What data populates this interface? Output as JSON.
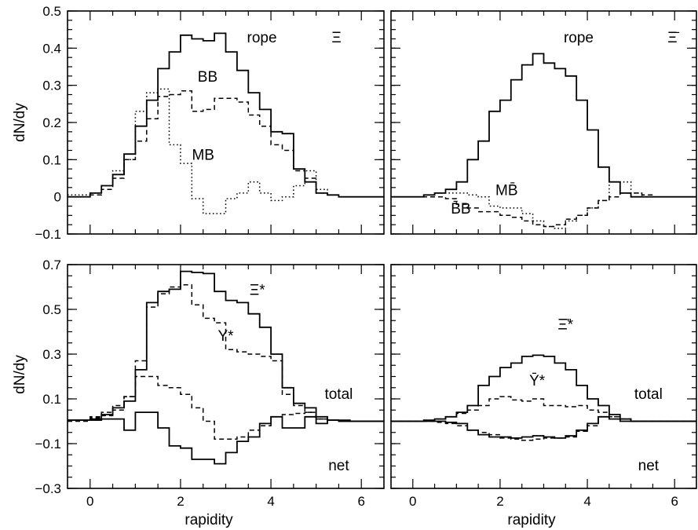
{
  "figure": {
    "ylabel": "dN/dy",
    "xlabel": "rapidity"
  },
  "chart_data": [
    {
      "id": "top-left",
      "type": "line",
      "step": true,
      "xlim": [
        -0.5,
        6.5
      ],
      "ylim": [
        -0.1,
        0.5
      ],
      "xticks": [
        0,
        2,
        4,
        6
      ],
      "yticks": [
        -0.1,
        0,
        0.1,
        0.2,
        0.3,
        0.4,
        0.5
      ],
      "ytick_labels": [
        "−0.1",
        "0",
        "0.1",
        "0.2",
        "0.3",
        "0.4",
        "0.5"
      ],
      "xtick_labels_shown": false,
      "edges": [
        -0.5,
        0,
        0.25,
        0.5,
        0.75,
        1,
        1.25,
        1.5,
        1.75,
        2,
        2.25,
        2.5,
        2.75,
        3,
        3.25,
        3.5,
        3.75,
        4,
        4.25,
        4.5,
        4.75,
        5,
        5.25,
        5.5,
        5.75,
        6,
        6.5
      ],
      "series": [
        {
          "id": "rope",
          "style": "solid",
          "values": [
            0,
            0.01,
            0.03,
            0.06,
            0.115,
            0.19,
            0.26,
            0.345,
            0.39,
            0.435,
            0.425,
            0.42,
            0.44,
            0.39,
            0.34,
            0.28,
            0.235,
            0.175,
            0.17,
            0.075,
            0.04,
            0.01,
            0.005,
            0,
            0,
            0
          ]
        },
        {
          "id": "BB",
          "style": "dashed",
          "values": [
            0,
            0.005,
            0.02,
            0.05,
            0.1,
            0.15,
            0.21,
            0.27,
            0.275,
            0.285,
            0.23,
            0.235,
            0.265,
            0.265,
            0.255,
            0.22,
            0.19,
            0.14,
            0.125,
            0.07,
            0.05,
            0.01,
            0.005,
            0,
            0,
            0
          ]
        },
        {
          "id": "MB",
          "style": "dotted",
          "values": [
            0.005,
            0.01,
            0.03,
            0.07,
            0.1,
            0.23,
            0.28,
            0.29,
            0.14,
            0.09,
            -0.005,
            -0.045,
            -0.045,
            -0.005,
            0.01,
            0.04,
            0.01,
            -0.01,
            0.0,
            0.03,
            0.07,
            0.02,
            0.005,
            0,
            0,
            0
          ]
        }
      ],
      "annotations": [
        {
          "text": "rope",
          "x": 3.8,
          "y": 0.415
        },
        {
          "text": "BB",
          "x": 2.6,
          "y": 0.31
        },
        {
          "text": "MB",
          "x": 2.5,
          "y": 0.1
        },
        {
          "text": "Ξ",
          "x": 5.45,
          "y": 0.415,
          "symbol": true
        }
      ]
    },
    {
      "id": "top-right",
      "type": "line",
      "step": true,
      "xlim": [
        -0.5,
        6.5
      ],
      "ylim": [
        -0.1,
        0.5
      ],
      "xticks": [
        0,
        2,
        4,
        6
      ],
      "yticks": [
        -0.1,
        0,
        0.1,
        0.2,
        0.3,
        0.4,
        0.5
      ],
      "xtick_labels_shown": false,
      "ytick_labels_shown": false,
      "edges": [
        -0.5,
        0,
        0.25,
        0.5,
        0.75,
        1,
        1.25,
        1.5,
        1.75,
        2,
        2.25,
        2.5,
        2.75,
        3,
        3.25,
        3.5,
        3.75,
        4,
        4.25,
        4.5,
        4.75,
        5,
        5.25,
        5.5,
        5.75,
        6,
        6.5
      ],
      "series": [
        {
          "id": "rope",
          "style": "solid",
          "values": [
            0,
            0,
            0.005,
            0.01,
            0.02,
            0.04,
            0.1,
            0.15,
            0.23,
            0.26,
            0.315,
            0.355,
            0.385,
            0.36,
            0.345,
            0.325,
            0.26,
            0.18,
            0.08,
            0.04,
            0.01,
            0,
            0,
            0,
            0,
            0
          ]
        },
        {
          "id": "BB",
          "style": "dashed",
          "values": [
            0,
            0,
            0,
            0,
            -0.005,
            -0.02,
            -0.03,
            -0.04,
            -0.04,
            -0.05,
            -0.055,
            -0.065,
            -0.075,
            -0.08,
            -0.075,
            -0.06,
            -0.05,
            -0.03,
            -0.01,
            0.0,
            0.01,
            0.01,
            0.005,
            0,
            0,
            0
          ]
        },
        {
          "id": "MB",
          "style": "dotted",
          "values": [
            0,
            0,
            0.005,
            0.01,
            0.01,
            0.01,
            0.005,
            0,
            -0.025,
            -0.03,
            -0.03,
            -0.045,
            -0.065,
            -0.08,
            -0.085,
            -0.065,
            -0.05,
            -0.03,
            -0.01,
            0.04,
            0.04,
            0.01,
            0,
            0,
            0,
            0
          ]
        }
      ],
      "annotations": [
        {
          "text": "rope",
          "x": 3.8,
          "y": 0.415
        },
        {
          "text": "MB̄",
          "x": 2.15,
          "y": 0.005
        },
        {
          "text": "B̄B",
          "x": 1.1,
          "y": -0.045
        },
        {
          "text": "Ξ̄",
          "x": 5.95,
          "y": 0.415,
          "symbol": true
        }
      ]
    },
    {
      "id": "bottom-left",
      "type": "line",
      "step": true,
      "xlim": [
        -0.5,
        6.5
      ],
      "ylim": [
        -0.3,
        0.7
      ],
      "xticks": [
        0,
        2,
        4,
        6
      ],
      "xtick_labels": [
        "0",
        "2",
        "4",
        "6"
      ],
      "yticks": [
        -0.3,
        -0.1,
        0.1,
        0.3,
        0.5,
        0.7
      ],
      "ytick_labels": [
        "−0.3",
        "−0.1",
        "0.1",
        "0.3",
        "0.5",
        "0.7"
      ],
      "edges": [
        -0.5,
        0,
        0.25,
        0.5,
        0.75,
        1,
        1.25,
        1.5,
        1.75,
        2,
        2.25,
        2.5,
        2.75,
        3,
        3.25,
        3.5,
        3.75,
        4,
        4.25,
        4.5,
        4.75,
        5,
        5.25,
        5.5,
        5.75,
        6,
        6.5
      ],
      "series": [
        {
          "id": "Xi-total",
          "style": "solid",
          "values": [
            0.005,
            0.01,
            0.03,
            0.06,
            0.09,
            0.23,
            0.53,
            0.58,
            0.59,
            0.67,
            0.665,
            0.66,
            0.58,
            0.54,
            0.53,
            0.48,
            0.42,
            0.3,
            0.15,
            0.08,
            0.06,
            0.02,
            0.005,
            0.005,
            0,
            0
          ]
        },
        {
          "id": "Y-total",
          "style": "dashed",
          "values": [
            0.005,
            0.02,
            0.04,
            0.07,
            0.11,
            0.27,
            0.51,
            0.57,
            0.6,
            0.61,
            0.52,
            0.46,
            0.44,
            0.32,
            0.31,
            0.3,
            0.29,
            0.27,
            0.12,
            0.07,
            0.04,
            0.01,
            0.005,
            0,
            0,
            0
          ]
        },
        {
          "id": "Xi-net",
          "style": "solid",
          "values": [
            0.005,
            0.005,
            0.01,
            0.01,
            -0.04,
            0.04,
            0.04,
            -0.03,
            -0.11,
            -0.12,
            -0.17,
            -0.17,
            -0.19,
            -0.14,
            -0.09,
            -0.07,
            -0.01,
            0.02,
            -0.03,
            -0.03,
            0.02,
            -0.01,
            0.005,
            0,
            0,
            0
          ]
        },
        {
          "id": "Y-net",
          "style": "dashed",
          "values": [
            0,
            0.015,
            0.025,
            0.05,
            0.11,
            0.2,
            0.2,
            0.16,
            0.15,
            0.12,
            0.06,
            0.0,
            -0.08,
            -0.08,
            -0.07,
            -0.04,
            -0.02,
            0.02,
            0.03,
            0.035,
            0.04,
            0.01,
            0.005,
            0,
            0,
            0
          ]
        }
      ],
      "annotations": [
        {
          "text": "Ξ*",
          "x": 3.7,
          "y": 0.565,
          "symbol": true
        },
        {
          "text": "Y*",
          "x": 3.0,
          "y": 0.36
        },
        {
          "text": "total",
          "x": 5.5,
          "y": 0.1
        },
        {
          "text": "net",
          "x": 5.5,
          "y": -0.22
        }
      ]
    },
    {
      "id": "bottom-right",
      "type": "line",
      "step": true,
      "xlim": [
        -0.5,
        6.5
      ],
      "ylim": [
        -0.3,
        0.7
      ],
      "xticks": [
        0,
        2,
        4,
        6
      ],
      "xtick_labels": [
        "0",
        "2",
        "4",
        "6"
      ],
      "yticks": [
        -0.3,
        -0.1,
        0.1,
        0.3,
        0.5,
        0.7
      ],
      "ytick_labels_shown": false,
      "edges": [
        -0.5,
        0,
        0.25,
        0.5,
        0.75,
        1,
        1.25,
        1.5,
        1.75,
        2,
        2.25,
        2.5,
        2.75,
        3,
        3.25,
        3.5,
        3.75,
        4,
        4.25,
        4.5,
        4.75,
        5,
        5.25,
        5.5,
        5.75,
        6,
        6.5
      ],
      "series": [
        {
          "id": "Xi-total",
          "style": "solid",
          "values": [
            0,
            0,
            0.005,
            0.01,
            0.02,
            0.04,
            0.07,
            0.16,
            0.2,
            0.24,
            0.26,
            0.29,
            0.295,
            0.29,
            0.26,
            0.23,
            0.16,
            0.1,
            0.07,
            0.03,
            0.01,
            0,
            0,
            0,
            0,
            0
          ]
        },
        {
          "id": "Y-total",
          "style": "dashed",
          "values": [
            0,
            0,
            0.005,
            0.01,
            0.02,
            0.035,
            0.05,
            0.07,
            0.1,
            0.11,
            0.095,
            0.09,
            0.1,
            0.07,
            0.07,
            0.065,
            0.07,
            0.05,
            0.04,
            0.02,
            0.01,
            0,
            0,
            0,
            0,
            0
          ]
        },
        {
          "id": "Xi-net",
          "style": "solid",
          "values": [
            0,
            0,
            0,
            0,
            -0.005,
            -0.01,
            -0.04,
            -0.06,
            -0.07,
            -0.07,
            -0.075,
            -0.07,
            -0.065,
            -0.07,
            -0.075,
            -0.065,
            -0.04,
            -0.01,
            0.02,
            0.01,
            0.0,
            0,
            0,
            0,
            0,
            0
          ]
        },
        {
          "id": "Y-net",
          "style": "dashed",
          "values": [
            0,
            0,
            0,
            -0.005,
            -0.01,
            -0.02,
            -0.04,
            -0.05,
            -0.06,
            -0.075,
            -0.08,
            -0.085,
            -0.08,
            -0.075,
            -0.075,
            -0.07,
            -0.045,
            -0.02,
            0.02,
            0.02,
            0.01,
            0,
            0,
            0,
            0,
            0
          ]
        }
      ],
      "annotations": [
        {
          "text": "Ξ̄*",
          "x": 3.5,
          "y": 0.41,
          "symbol": true
        },
        {
          "text": "Ȳ*",
          "x": 2.85,
          "y": 0.16
        },
        {
          "text": "total",
          "x": 5.4,
          "y": 0.1
        },
        {
          "text": "net",
          "x": 5.4,
          "y": -0.22
        }
      ]
    }
  ]
}
